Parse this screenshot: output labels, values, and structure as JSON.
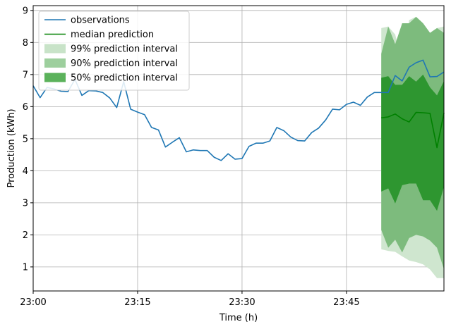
{
  "chart_data": {
    "type": "line",
    "xlabel": "Time (h)",
    "ylabel": "Production (kWh)",
    "xlim_minutes": [
      0,
      59
    ],
    "ylim": [
      0.25,
      9.15
    ],
    "grid": true,
    "legend_position": "upper-left",
    "x_ticks": [
      {
        "minute": 0,
        "label": "23:00"
      },
      {
        "minute": 15,
        "label": "23:15"
      },
      {
        "minute": 30,
        "label": "23:30"
      },
      {
        "minute": 45,
        "label": "23:45"
      }
    ],
    "y_ticks": [
      1,
      2,
      3,
      4,
      5,
      6,
      7,
      8,
      9
    ],
    "colors": {
      "observations": "#1f77b4",
      "median": "#008000",
      "band99": "#cfe6cf",
      "band90": "#7dbb7d",
      "band50": "#2e9630",
      "grid": "#b0b0b0"
    },
    "legend": [
      {
        "label": "observations",
        "kind": "line",
        "color": "#1f77b4"
      },
      {
        "label": "median prediction",
        "kind": "line",
        "color": "#008000"
      },
      {
        "label": "99% prediction interval",
        "kind": "patch",
        "color": "#c8e3c8"
      },
      {
        "label": "90% prediction interval",
        "kind": "patch",
        "color": "#9dcf9d"
      },
      {
        "label": "50% prediction interval",
        "kind": "patch",
        "color": "#5bb25b"
      }
    ],
    "observations": {
      "minute": [
        0,
        1,
        2,
        3,
        4,
        5,
        6,
        7,
        8,
        9,
        10,
        11,
        12,
        13,
        14,
        15,
        16,
        17,
        18,
        19,
        20,
        21,
        22,
        23,
        24,
        25,
        26,
        27,
        28,
        29,
        30,
        31,
        32,
        33,
        34,
        35,
        36,
        37,
        38,
        39,
        40,
        41,
        42,
        43,
        44,
        45,
        46,
        47,
        48,
        49,
        50,
        51,
        52,
        53,
        54,
        55,
        56,
        57,
        58,
        59
      ],
      "values": [
        6.65,
        6.28,
        6.6,
        6.55,
        6.48,
        6.47,
        6.85,
        6.35,
        6.5,
        6.49,
        6.44,
        6.27,
        5.97,
        6.78,
        5.92,
        5.83,
        5.75,
        5.35,
        5.27,
        4.74,
        4.89,
        5.03,
        4.59,
        4.65,
        4.63,
        4.63,
        4.42,
        4.32,
        4.53,
        4.36,
        4.38,
        4.76,
        4.86,
        4.86,
        4.93,
        5.35,
        5.25,
        5.05,
        4.94,
        4.93,
        5.19,
        5.33,
        5.58,
        5.92,
        5.9,
        6.07,
        6.14,
        6.04,
        6.3,
        6.44,
        6.44,
        6.44,
        6.97,
        6.8,
        7.23,
        7.37,
        7.45,
        6.93,
        6.94,
        7.08
      ]
    },
    "forecast": {
      "minute": [
        50,
        51,
        52,
        53,
        54,
        55,
        56,
        57,
        58,
        59
      ],
      "median": [
        5.65,
        5.68,
        5.77,
        5.62,
        5.52,
        5.82,
        5.81,
        5.79,
        4.72,
        5.8
      ],
      "band99_upper": [
        8.45,
        8.5,
        8.25,
        7.4,
        8.7,
        8.8,
        8.6,
        8.3,
        8.45,
        8.5
      ],
      "band99_lower": [
        1.55,
        1.5,
        1.47,
        1.33,
        1.2,
        1.15,
        1.08,
        0.92,
        0.65,
        0.65
      ],
      "band90_upper": [
        7.65,
        8.5,
        7.95,
        8.6,
        8.6,
        8.8,
        8.6,
        8.3,
        8.45,
        8.3
      ],
      "band90_lower": [
        2.15,
        1.6,
        1.85,
        1.45,
        1.9,
        2.0,
        1.95,
        1.82,
        1.6,
        0.93
      ],
      "band50_upper": [
        6.9,
        6.95,
        6.68,
        6.68,
        6.95,
        6.78,
        7.0,
        6.6,
        6.35,
        6.8
      ],
      "band50_lower": [
        3.35,
        3.45,
        2.98,
        3.55,
        3.6,
        3.6,
        3.08,
        3.08,
        2.75,
        3.5
      ]
    }
  }
}
